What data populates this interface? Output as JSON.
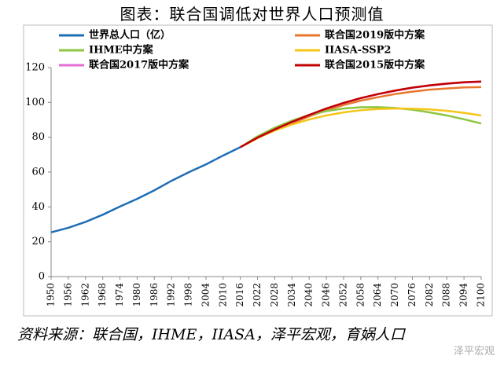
{
  "chart_data": {
    "type": "line",
    "title": "图表：联合国调低对世界人口预测值",
    "source": "资料来源：联合国，IHME，IIASA，泽平宏观，育娲人口",
    "watermark": "泽平宏观",
    "x": [
      1950,
      1956,
      1962,
      1968,
      1974,
      1980,
      1986,
      1992,
      1998,
      2004,
      2010,
      2016,
      2022,
      2028,
      2034,
      2040,
      2046,
      2052,
      2058,
      2064,
      2070,
      2076,
      2082,
      2088,
      2094,
      2100
    ],
    "xlim": [
      1950,
      2100
    ],
    "xticks": [
      1950,
      1956,
      1962,
      1968,
      1974,
      1980,
      1986,
      1992,
      1998,
      2004,
      2010,
      2016,
      2022,
      2028,
      2034,
      2040,
      2046,
      2052,
      2058,
      2064,
      2070,
      2076,
      2082,
      2088,
      2094,
      2100
    ],
    "ylim": [
      0,
      120
    ],
    "yticks": [
      0,
      20,
      40,
      60,
      80,
      100,
      120
    ],
    "series": [
      {
        "name": "世界总人口（亿）",
        "color": "#1f6eb5",
        "values": [
          25.4,
          28,
          31.4,
          35.5,
          40.2,
          44.6,
          49.5,
          55,
          59.9,
          64.4,
          69.5,
          74.3,
          null,
          null,
          null,
          null,
          null,
          null,
          null,
          null,
          null,
          null,
          null,
          null,
          null,
          null
        ]
      },
      {
        "name": "联合国2019版中方案",
        "color": "#e8772e",
        "values": [
          null,
          null,
          null,
          null,
          null,
          null,
          null,
          null,
          null,
          null,
          null,
          74.3,
          79.5,
          84,
          88,
          92,
          95.5,
          98.5,
          101,
          103,
          104.8,
          106.2,
          107.3,
          108,
          108.6,
          108.8
        ]
      },
      {
        "name": "IHME中方案",
        "color": "#8dc63f",
        "values": [
          null,
          null,
          null,
          null,
          null,
          null,
          null,
          null,
          null,
          null,
          null,
          74.3,
          80.5,
          85.5,
          89.5,
          92.8,
          95,
          96.5,
          97.2,
          97.3,
          96.8,
          95.8,
          94.3,
          92.5,
          90.3,
          87.9
        ]
      },
      {
        "name": "IIASA-SSP2",
        "color": "#f5c518",
        "values": [
          null,
          null,
          null,
          null,
          null,
          null,
          null,
          null,
          null,
          null,
          null,
          74.3,
          79.5,
          83.8,
          87.3,
          90.2,
          92.5,
          94.3,
          95.5,
          96.2,
          96.5,
          96.4,
          96,
          95.2,
          94,
          92.5
        ]
      },
      {
        "name": "联合国2017版中方案",
        "color": "#e36fd6",
        "values": [
          null,
          null,
          null,
          null,
          null,
          null,
          null,
          null,
          null,
          null,
          null,
          74.3,
          79.8,
          84.4,
          88.7,
          92.7,
          96.4,
          99.6,
          102.4,
          104.7,
          106.7,
          108.4,
          109.7,
          110.7,
          111.4,
          111.8
        ]
      },
      {
        "name": "联合国2015版中方案",
        "color": "#c00000",
        "values": [
          null,
          null,
          null,
          null,
          null,
          null,
          null,
          null,
          null,
          null,
          null,
          74.3,
          79.8,
          84.5,
          88.8,
          92.8,
          96.5,
          99.7,
          102.5,
          104.8,
          106.8,
          108.5,
          109.8,
          110.8,
          111.6,
          112
        ]
      }
    ]
  }
}
